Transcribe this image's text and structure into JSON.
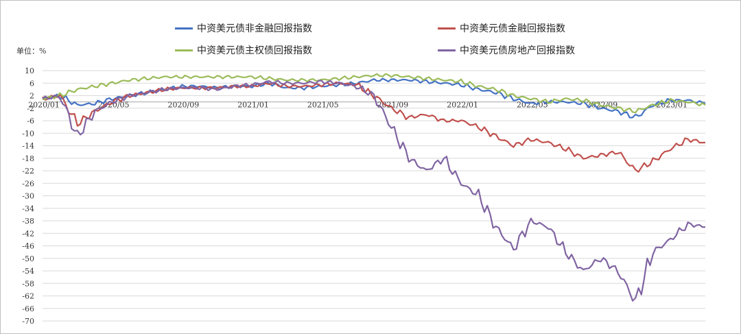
{
  "chart_data": {
    "type": "line",
    "unit_label": "单位：%",
    "ylim": [
      -70,
      10
    ],
    "yticks": [
      10,
      6,
      2,
      -2,
      -6,
      -10,
      -14,
      -18,
      -22,
      -26,
      -30,
      -34,
      -38,
      -42,
      -46,
      -50,
      -54,
      -58,
      -62,
      -66,
      -70
    ],
    "xlim": [
      "2020-01",
      "2023-03"
    ],
    "xticks": [
      "2020/01",
      "2020/05",
      "2020/09",
      "2021/01",
      "2021/05",
      "2021/09",
      "2022/01",
      "2022/05",
      "2022/09",
      "2023/01"
    ],
    "grid": true,
    "legend_position": "top",
    "x": [
      "2020-01",
      "2020-02",
      "2020-03",
      "2020-04",
      "2020-05",
      "2020-06",
      "2020-07",
      "2020-08",
      "2020-09",
      "2020-10",
      "2020-11",
      "2020-12",
      "2021-01",
      "2021-02",
      "2021-03",
      "2021-04",
      "2021-05",
      "2021-06",
      "2021-07",
      "2021-08",
      "2021-09",
      "2021-10",
      "2021-11",
      "2021-12",
      "2022-01",
      "2022-02",
      "2022-03",
      "2022-04",
      "2022-05",
      "2022-06",
      "2022-07",
      "2022-08",
      "2022-09",
      "2022-10",
      "2022-11",
      "2022-12",
      "2023-01",
      "2023-02",
      "2023-03"
    ],
    "series": [
      {
        "name": "中资美元债非金融回报指数",
        "color": "#4472c4",
        "values": [
          1,
          2,
          -1,
          -0.5,
          1,
          2,
          3,
          4,
          5,
          5,
          4.5,
          5,
          5,
          6,
          4.5,
          4.5,
          5,
          5.5,
          6,
          7,
          7,
          7,
          6.5,
          6,
          5.5,
          4,
          3,
          1,
          -0.5,
          0,
          0,
          -0.5,
          -2,
          -3,
          -5,
          -1,
          0.5,
          0.5,
          -0.5
        ]
      },
      {
        "name": "中资美元债金融回报指数",
        "color": "#c0504d",
        "values": [
          1,
          2,
          -7,
          -3,
          0,
          2,
          3,
          4,
          4.5,
          4.5,
          4.5,
          5,
          5,
          6,
          5,
          5,
          5.5,
          6,
          5.5,
          2,
          -2,
          -5,
          -4,
          -6,
          -6,
          -8,
          -11,
          -14,
          -12,
          -13,
          -15,
          -18,
          -17,
          -16,
          -22,
          -19,
          -15,
          -12,
          -13
        ]
      },
      {
        "name": "中资美元债主权债回报指数",
        "color": "#9bbb59",
        "values": [
          1,
          2,
          4,
          5,
          6,
          7,
          7.5,
          8,
          8,
          8,
          8,
          8,
          8,
          7.5,
          7,
          7,
          7,
          7.5,
          8,
          8.5,
          8.5,
          8,
          7.5,
          7,
          6.5,
          5,
          4,
          2,
          1,
          0,
          1,
          0.5,
          -1,
          -2,
          -3,
          -1,
          0.5,
          0,
          -1
        ]
      },
      {
        "name": "中资美元债房地产回报指数",
        "color": "#8064a2",
        "values": [
          1,
          2,
          -11,
          -3,
          0,
          2,
          3,
          4,
          4.5,
          4.5,
          4,
          5,
          5.5,
          6.5,
          6,
          6,
          6.5,
          6,
          5,
          2,
          -8,
          -18,
          -22,
          -18,
          -26,
          -30,
          -40,
          -47,
          -38,
          -40,
          -48,
          -54,
          -50,
          -54,
          -64,
          -48,
          -44,
          -39,
          -40
        ]
      }
    ]
  }
}
